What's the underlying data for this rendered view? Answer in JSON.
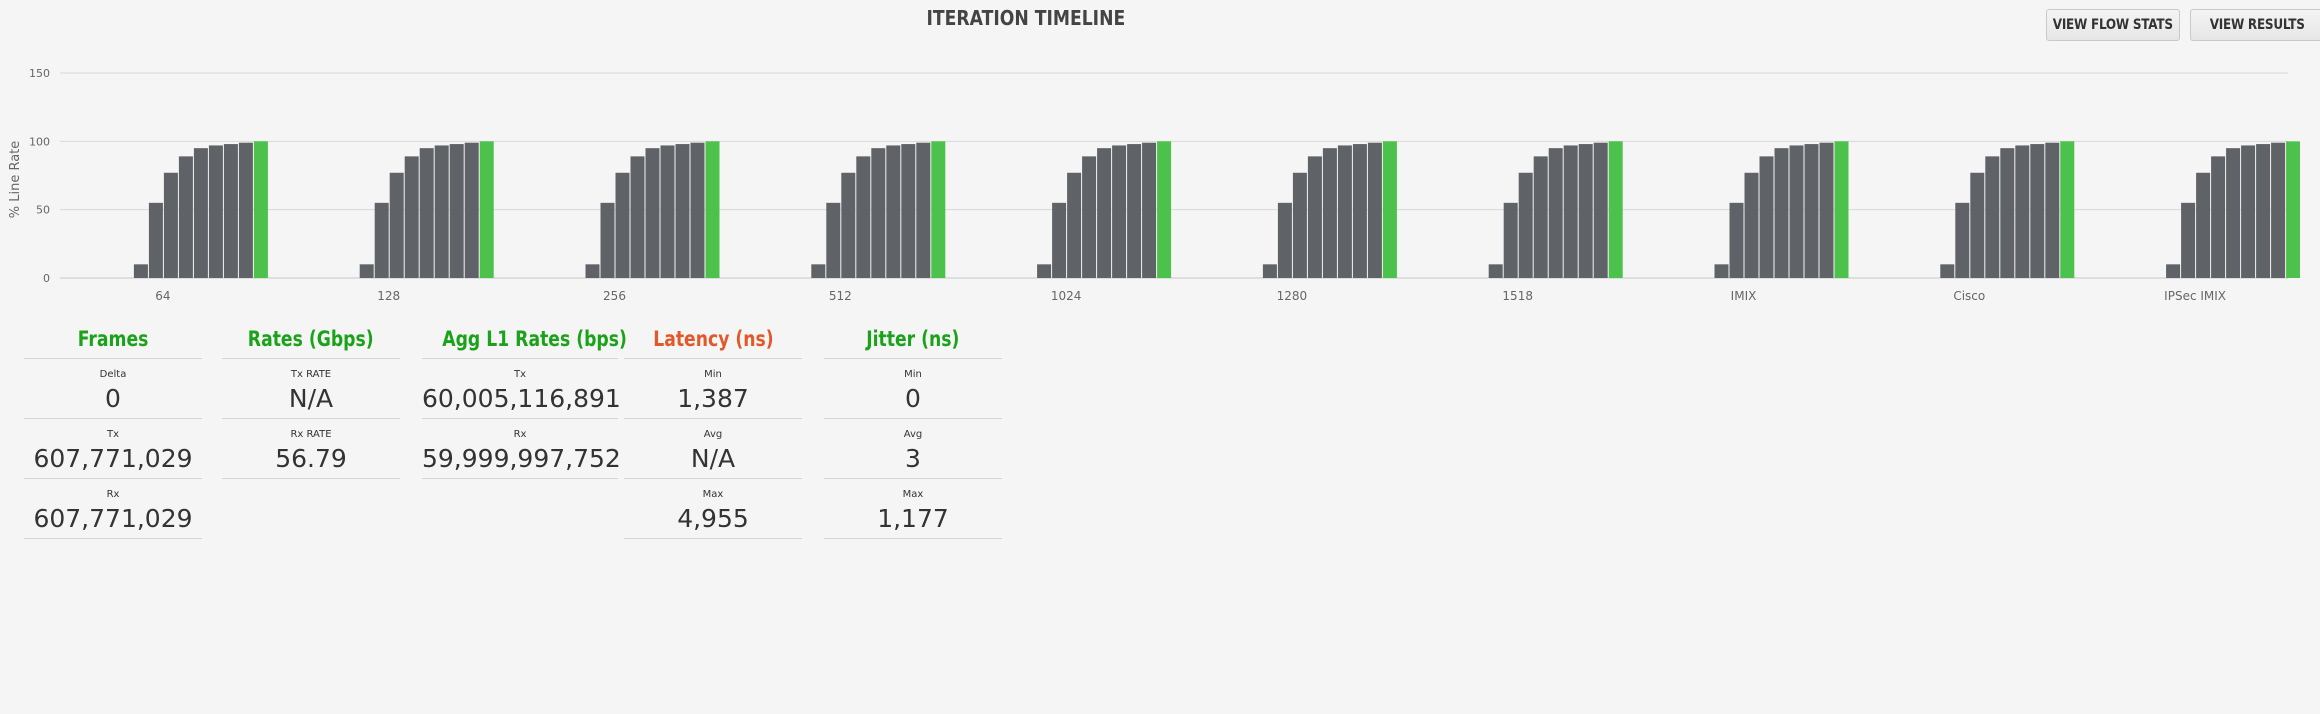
{
  "header": {
    "title": "ITERATION TIMELINE",
    "view_flow_stats_label": "VIEW FLOW STATS",
    "view_results_label": "VIEW RESULTS"
  },
  "colors": {
    "bar": "#5f6266",
    "bar_final": "#4cc14c",
    "green_heading": "#1aa31a",
    "orange_heading": "#e2582a",
    "grid": "#d8d8d8"
  },
  "chart_data": {
    "type": "bar",
    "ylabel": "% Line Rate",
    "ylim": [
      0,
      150
    ],
    "yticks": [
      0,
      50,
      100,
      150
    ],
    "grid": true,
    "categories": [
      "64",
      "128",
      "256",
      "512",
      "1024",
      "1280",
      "1518",
      "IMIX",
      "Cisco",
      "IPSec IMIX"
    ],
    "groups": [
      {
        "category": "64",
        "values": [
          10,
          55,
          77,
          89,
          95,
          97,
          98,
          99,
          100
        ]
      },
      {
        "category": "128",
        "values": [
          10,
          55,
          77,
          89,
          95,
          97,
          98,
          99,
          100
        ]
      },
      {
        "category": "256",
        "values": [
          10,
          55,
          77,
          89,
          95,
          97,
          98,
          99,
          100
        ]
      },
      {
        "category": "512",
        "values": [
          10,
          55,
          77,
          89,
          95,
          97,
          98,
          99,
          100
        ]
      },
      {
        "category": "1024",
        "values": [
          10,
          55,
          77,
          89,
          95,
          97,
          98,
          99,
          100
        ]
      },
      {
        "category": "1280",
        "values": [
          10,
          55,
          77,
          89,
          95,
          97,
          98,
          99,
          100
        ]
      },
      {
        "category": "1518",
        "values": [
          10,
          55,
          77,
          89,
          95,
          97,
          98,
          99,
          100
        ]
      },
      {
        "category": "IMIX",
        "values": [
          10,
          55,
          77,
          89,
          95,
          97,
          98,
          99,
          100
        ]
      },
      {
        "category": "Cisco",
        "values": [
          10,
          55,
          77,
          89,
          95,
          97,
          98,
          99,
          100
        ]
      },
      {
        "category": "IPSec IMIX",
        "values": [
          10,
          55,
          77,
          89,
          95,
          97,
          98,
          99,
          100
        ]
      }
    ]
  },
  "stats": {
    "frames": {
      "heading": "Frames",
      "rows": [
        {
          "label": "Delta",
          "value": "0"
        },
        {
          "label": "Tx",
          "value": "607,771,029"
        },
        {
          "label": "Rx",
          "value": "607,771,029"
        }
      ]
    },
    "rates": {
      "heading": "Rates (Gbps)",
      "rows": [
        {
          "label": "Tx RATE",
          "value": "N/A"
        },
        {
          "label": "Rx RATE",
          "value": "56.79"
        }
      ]
    },
    "agg": {
      "heading": "Agg L1 Rates (bps)",
      "rows": [
        {
          "label": "Tx",
          "value": "60,005,116,891"
        },
        {
          "label": "Rx",
          "value": "59,999,997,752"
        }
      ]
    },
    "latency": {
      "heading": "Latency (ns)",
      "rows": [
        {
          "label": "Min",
          "value": "1,387"
        },
        {
          "label": "Avg",
          "value": "N/A"
        },
        {
          "label": "Max",
          "value": "4,955"
        }
      ]
    },
    "jitter": {
      "heading": "Jitter (ns)",
      "rows": [
        {
          "label": "Min",
          "value": "0"
        },
        {
          "label": "Avg",
          "value": "3"
        },
        {
          "label": "Max",
          "value": "1,177"
        }
      ]
    }
  }
}
